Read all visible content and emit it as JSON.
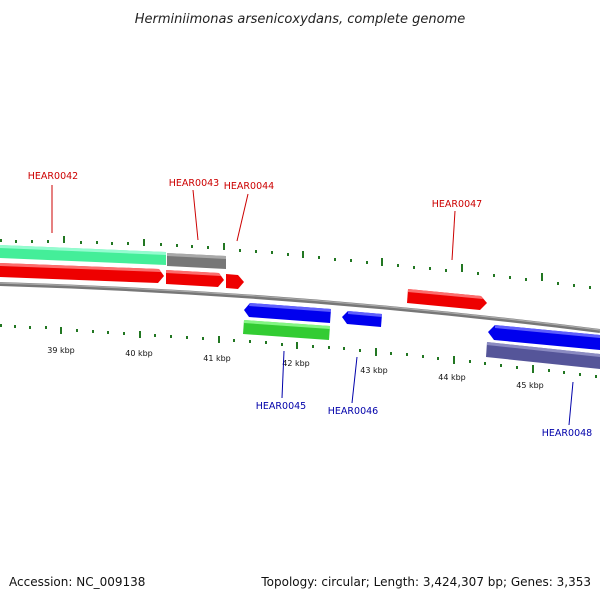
{
  "title": "Herminiimonas arsenicoxydans, complete genome",
  "footer": {
    "accession": "Accession: NC_009138",
    "summary": "Topology: circular; Length: 3,424,307 bp; Genes: 3,353"
  },
  "ticks": [
    "39 kbp",
    "40 kbp",
    "41 kbp",
    "42 kbp",
    "43 kbp",
    "44 kbp",
    "45 kbp"
  ],
  "forward_genes": [
    "HEAR0042",
    "HEAR0043",
    "HEAR0044",
    "HEAR0047"
  ],
  "reverse_genes": [
    "HEAR0045",
    "HEAR0046",
    "HEAR0048"
  ],
  "colors": {
    "forward_label": "#cc0000",
    "reverse_label": "#0000aa",
    "cds_forward": "#ee0000",
    "cds_reverse": "#0000ee",
    "teal_feature": "#33ee99",
    "gray_feature": "#777777",
    "green_feature": "#33cc33",
    "slate_feature": "#555599",
    "backbone": "#888888",
    "tick": "#227722"
  }
}
